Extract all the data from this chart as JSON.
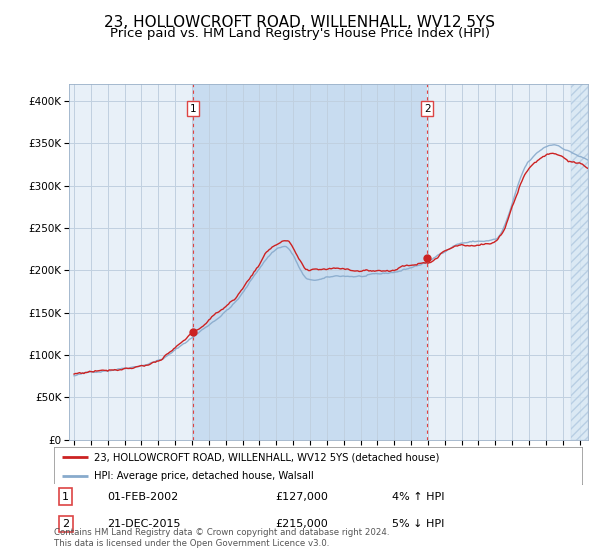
{
  "title": "23, HOLLOWCROFT ROAD, WILLENHALL, WV12 5YS",
  "subtitle": "Price paid vs. HM Land Registry's House Price Index (HPI)",
  "legend_line1": "23, HOLLOWCROFT ROAD, WILLENHALL, WV12 5YS (detached house)",
  "legend_line2": "HPI: Average price, detached house, Walsall",
  "footnote": "Contains HM Land Registry data © Crown copyright and database right 2024.\nThis data is licensed under the Open Government Licence v3.0.",
  "sale1_date_label": "01-FEB-2002",
  "sale1_price_label": "£127,000",
  "sale1_hpi_label": "4% ↑ HPI",
  "sale2_date_label": "21-DEC-2015",
  "sale2_price_label": "£215,000",
  "sale2_hpi_label": "5% ↓ HPI",
  "sale1_x": 2002.083,
  "sale1_y": 127000,
  "sale2_x": 2015.958,
  "sale2_y": 215000,
  "ylim": [
    0,
    420000
  ],
  "xlim_start": 1994.7,
  "xlim_end": 2025.5,
  "bg_color": "#ddeeff",
  "outer_bg_color": "#e8f0f8",
  "grid_color": "#c8d8e8",
  "red_line_color": "#cc2222",
  "blue_line_color": "#88aacc",
  "dashed_line_color": "#dd4444",
  "marker_color": "#cc2222",
  "title_fontsize": 11,
  "subtitle_fontsize": 9.5,
  "tick_fontsize": 7.5,
  "label_fontsize": 8
}
